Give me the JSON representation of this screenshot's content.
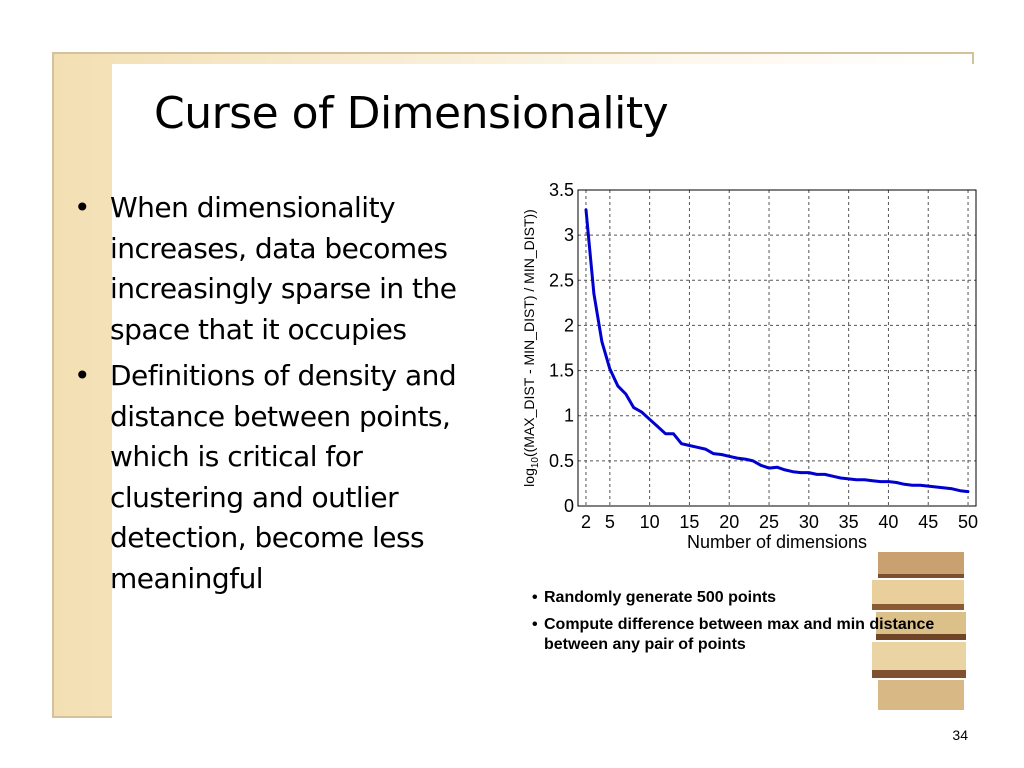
{
  "slide": {
    "title": "Curse of Dimensionality",
    "bullets": [
      "When dimensionality increases, data becomes increasingly sparse in the space that it occupies",
      "Definitions of density and distance between points, which is critical for clustering and outlier detection, become less meaningful"
    ],
    "notes": [
      "Randomly generate 500 points",
      "Compute difference between max and min distance between any pair of points"
    ],
    "page_number": "34",
    "bullet_glyph": "•"
  },
  "colors": {
    "line": "#0000d0",
    "grid": "#555555",
    "frame_border": "#d4c29d"
  },
  "chart_data": {
    "type": "line",
    "xlabel": "Number of dimensions",
    "ylabel_parts": [
      "log",
      "10",
      "((MAX_DIST - MIN_DIST) / MIN_DIST))"
    ],
    "xlim": [
      1,
      51
    ],
    "ylim": [
      0,
      3.5
    ],
    "xticks": [
      2,
      5,
      10,
      15,
      20,
      25,
      30,
      35,
      40,
      45,
      50
    ],
    "xtick_labels": [
      "2",
      "5",
      "10",
      "15",
      "20",
      "25",
      "30",
      "35",
      "40",
      "45",
      "50"
    ],
    "yticks": [
      0,
      0.5,
      1,
      1.5,
      2,
      2.5,
      3,
      3.5
    ],
    "ytick_labels": [
      "0",
      "0.5",
      "1",
      "1.5",
      "2",
      "2.5",
      "3",
      "3.5"
    ],
    "grid": true,
    "series": [
      {
        "x": [
          2,
          3,
          4,
          5,
          6,
          7,
          8,
          9,
          10,
          11,
          12,
          13,
          14,
          15,
          16,
          17,
          18,
          19,
          20,
          21,
          22,
          23,
          24,
          25,
          26,
          27,
          28,
          29,
          30,
          31,
          32,
          33,
          34,
          35,
          36,
          37,
          38,
          39,
          40,
          41,
          42,
          43,
          44,
          45,
          46,
          47,
          48,
          49,
          50
        ],
        "y": [
          3.28,
          2.35,
          1.82,
          1.52,
          1.33,
          1.24,
          1.09,
          1.04,
          0.96,
          0.88,
          0.8,
          0.8,
          0.69,
          0.67,
          0.65,
          0.63,
          0.58,
          0.57,
          0.55,
          0.53,
          0.52,
          0.5,
          0.45,
          0.42,
          0.43,
          0.4,
          0.38,
          0.37,
          0.37,
          0.35,
          0.35,
          0.33,
          0.31,
          0.3,
          0.29,
          0.29,
          0.28,
          0.27,
          0.27,
          0.26,
          0.24,
          0.23,
          0.23,
          0.22,
          0.21,
          0.2,
          0.19,
          0.17,
          0.16
        ]
      }
    ]
  }
}
